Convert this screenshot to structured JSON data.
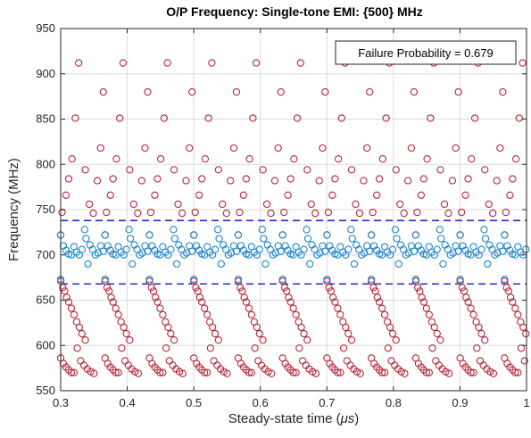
{
  "chart_data": {
    "type": "scatter",
    "title": "O/P Frequency: Single-tone EMI: {500} MHz",
    "xlabel_main": "Steady-state time (",
    "xlabel_unit": "μs",
    "xlabel_end": ")",
    "ylabel": "Frequency (MHz)",
    "xlim": [
      0.3,
      1.0
    ],
    "ylim": [
      550,
      950
    ],
    "xticks": [
      0.3,
      0.4,
      0.5,
      0.6,
      0.7,
      0.8,
      0.9,
      1.0
    ],
    "xtick_labels": [
      "0.3",
      "0.4",
      "0.5",
      "0.6",
      "0.7",
      "0.8",
      "0.9",
      "1"
    ],
    "yticks": [
      550,
      600,
      650,
      700,
      750,
      800,
      850,
      900,
      950
    ],
    "ytick_labels": [
      "550",
      "600",
      "650",
      "700",
      "750",
      "800",
      "850",
      "900",
      "950"
    ],
    "grid": true,
    "annotation": "Failure Probability = 0.679",
    "annotation_placement": "top-right",
    "thresholds": [
      {
        "y": 738,
        "color": "#0000cc",
        "style": "dashed"
      },
      {
        "y": 668,
        "color": "#0000cc",
        "style": "dashed"
      }
    ],
    "colors": {
      "fail": "#b5283c",
      "pass": "#1f86c8",
      "threshold": "#0000cc",
      "grid": "#dcdcdc"
    },
    "period_us": 0.0667,
    "start_us": 0.3,
    "cycles": 11,
    "fail_upper_cycle": [
      {
        "dx": 0.0,
        "y": 722
      },
      {
        "dx": 0.002,
        "y": 747
      },
      {
        "dx": 0.008,
        "y": 766
      },
      {
        "dx": 0.012,
        "y": 784
      },
      {
        "dx": 0.017,
        "y": 806
      },
      {
        "dx": 0.022,
        "y": 851
      },
      {
        "dx": 0.027,
        "y": 912
      },
      {
        "dx": 0.037,
        "y": 794
      },
      {
        "dx": 0.043,
        "y": 756
      },
      {
        "dx": 0.049,
        "y": 746
      },
      {
        "dx": 0.055,
        "y": 782
      },
      {
        "dx": 0.06,
        "y": 818
      },
      {
        "dx": 0.064,
        "y": 880
      }
    ],
    "fail_lower_cycle": [
      {
        "dx": 0.0,
        "y": 671
      },
      {
        "dx": 0.003,
        "y": 664
      },
      {
        "dx": 0.006,
        "y": 660
      },
      {
        "dx": 0.009,
        "y": 653
      },
      {
        "dx": 0.012,
        "y": 648
      },
      {
        "dx": 0.016,
        "y": 641
      },
      {
        "dx": 0.02,
        "y": 634
      },
      {
        "dx": 0.024,
        "y": 626
      },
      {
        "dx": 0.028,
        "y": 620
      },
      {
        "dx": 0.032,
        "y": 613
      },
      {
        "dx": 0.037,
        "y": 606
      },
      {
        "dx": 0.0,
        "y": 586
      },
      {
        "dx": 0.004,
        "y": 580
      },
      {
        "dx": 0.008,
        "y": 576
      },
      {
        "dx": 0.012,
        "y": 573
      },
      {
        "dx": 0.016,
        "y": 570
      },
      {
        "dx": 0.02,
        "y": 570
      },
      {
        "dx": 0.025,
        "y": 597
      },
      {
        "dx": 0.03,
        "y": 583
      },
      {
        "dx": 0.035,
        "y": 578
      },
      {
        "dx": 0.04,
        "y": 574
      },
      {
        "dx": 0.045,
        "y": 571
      },
      {
        "dx": 0.05,
        "y": 569
      }
    ],
    "pass_cycle": [
      {
        "dx": 0.0,
        "y": 722
      },
      {
        "dx": 0.0,
        "y": 673
      },
      {
        "dx": 0.004,
        "y": 710
      },
      {
        "dx": 0.008,
        "y": 705
      },
      {
        "dx": 0.012,
        "y": 701
      },
      {
        "dx": 0.016,
        "y": 700
      },
      {
        "dx": 0.02,
        "y": 709
      },
      {
        "dx": 0.024,
        "y": 703
      },
      {
        "dx": 0.028,
        "y": 700
      },
      {
        "dx": 0.032,
        "y": 706
      },
      {
        "dx": 0.036,
        "y": 728
      },
      {
        "dx": 0.038,
        "y": 718
      },
      {
        "dx": 0.041,
        "y": 690
      },
      {
        "dx": 0.044,
        "y": 711
      },
      {
        "dx": 0.048,
        "y": 706
      },
      {
        "dx": 0.052,
        "y": 700
      },
      {
        "dx": 0.056,
        "y": 702
      },
      {
        "dx": 0.06,
        "y": 710
      },
      {
        "dx": 0.064,
        "y": 704
      }
    ]
  }
}
